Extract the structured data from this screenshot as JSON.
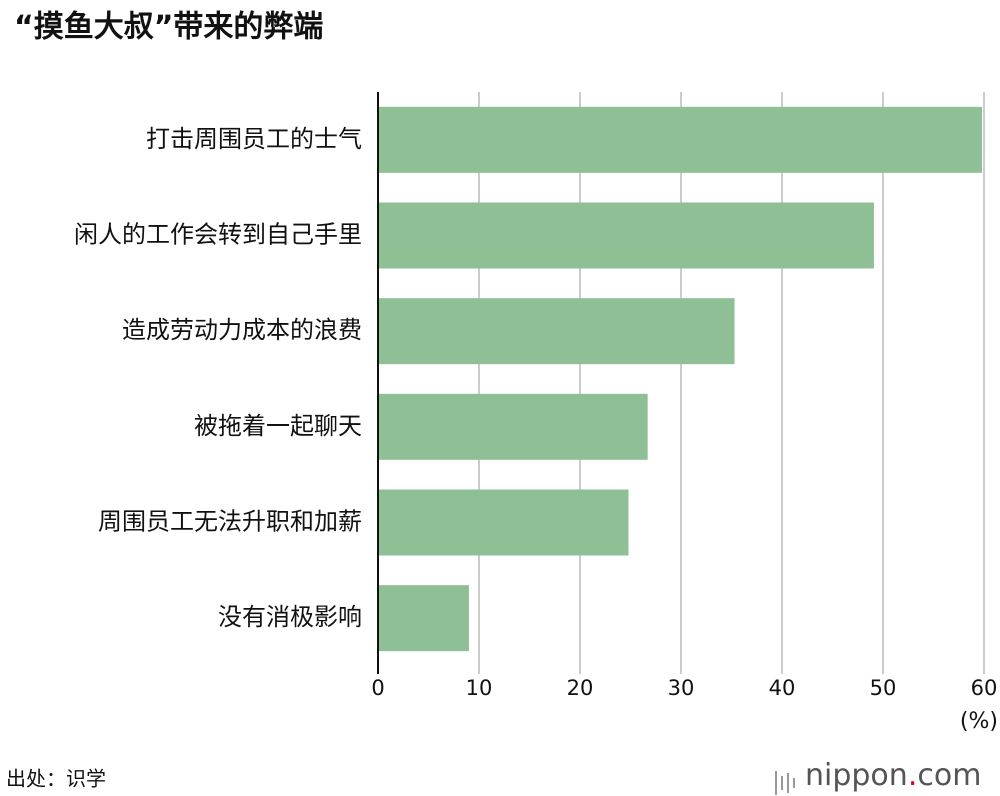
{
  "chart_data": {
    "type": "bar",
    "orientation": "horizontal",
    "title": "“摸鱼大叔”带来的弊端",
    "categories": [
      "打击周围员工的士气",
      "闲人的工作会转到自己手里",
      "造成劳动力成本的浪费",
      "被拖着一起聊天",
      "周围员工无法升职和加薪",
      "没有消极影响"
    ],
    "values": [
      59.8,
      49.1,
      35.3,
      26.7,
      24.8,
      9.0
    ],
    "color": "#8fbf94",
    "xlim": [
      0,
      60
    ],
    "xticks": [
      0,
      10,
      20,
      30,
      40,
      50,
      60
    ],
    "x_unit": "(%)",
    "grid": true,
    "source": "出处：识学",
    "logo": [
      "nippon",
      ".",
      "com"
    ]
  }
}
